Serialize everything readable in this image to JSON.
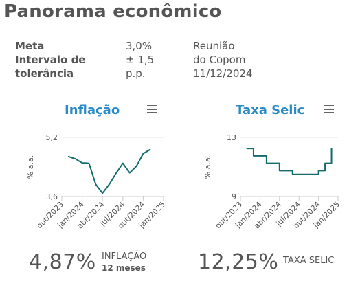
{
  "page": {
    "title": "Panorama econômico"
  },
  "info": {
    "labels": [
      "Meta",
      "Intervalo de",
      "tolerância"
    ],
    "values": [
      "3,0%",
      "± 1,5",
      "p.p."
    ],
    "meeting": [
      "Reunião",
      "do Copom",
      "11/12/2024"
    ]
  },
  "inflation": {
    "title": "Inflação",
    "big_value": "4,87%",
    "big_label": "INFLAÇÃO",
    "big_sub": "12 meses"
  },
  "selic": {
    "title": "Taxa Selic",
    "big_value": "12,25%",
    "big_label": "TAXA SELIC"
  },
  "chart_data": [
    {
      "type": "line",
      "title": "Inflação",
      "ylabel": "% a.a.",
      "ylim": [
        3.6,
        5.2
      ],
      "yticks": [
        "5,2",
        "3,6"
      ],
      "xticks": [
        "out/2023",
        "jan/2024",
        "abr/2024",
        "jul/2024",
        "out/2024",
        "jan/2025"
      ],
      "x": [
        "nov/2023",
        "dez/2023",
        "jan/2024",
        "fev/2024",
        "mar/2024",
        "abr/2024",
        "mai/2024",
        "jun/2024",
        "jul/2024",
        "ago/2024",
        "set/2024",
        "out/2024",
        "nov/2024"
      ],
      "values": [
        4.68,
        4.62,
        4.51,
        4.5,
        3.93,
        3.69,
        3.93,
        4.23,
        4.5,
        4.24,
        4.42,
        4.76,
        4.87
      ],
      "color": "#146b6b",
      "grid": true,
      "stepped": false
    },
    {
      "type": "line",
      "title": "Taxa Selic",
      "ylabel": "% a.a.",
      "ylim": [
        9,
        13
      ],
      "yticks": [
        "13",
        "9"
      ],
      "xticks": [
        "out/2023",
        "jan/2024",
        "abr/2024",
        "jul/2024",
        "out/2024",
        "jan/2025"
      ],
      "x": [
        "nov/2023",
        "dez/2023",
        "jan/2024",
        "fev/2024",
        "mar/2024",
        "abr/2024",
        "mai/2024",
        "jun/2024",
        "jul/2024",
        "ago/2024",
        "set/2024",
        "out/2024",
        "nov/2024",
        "dez/2024"
      ],
      "values": [
        12.25,
        11.75,
        11.75,
        11.25,
        11.25,
        10.75,
        10.75,
        10.5,
        10.5,
        10.5,
        10.5,
        10.75,
        11.25,
        12.25
      ],
      "color": "#146b6b",
      "grid": true,
      "stepped": true
    }
  ]
}
